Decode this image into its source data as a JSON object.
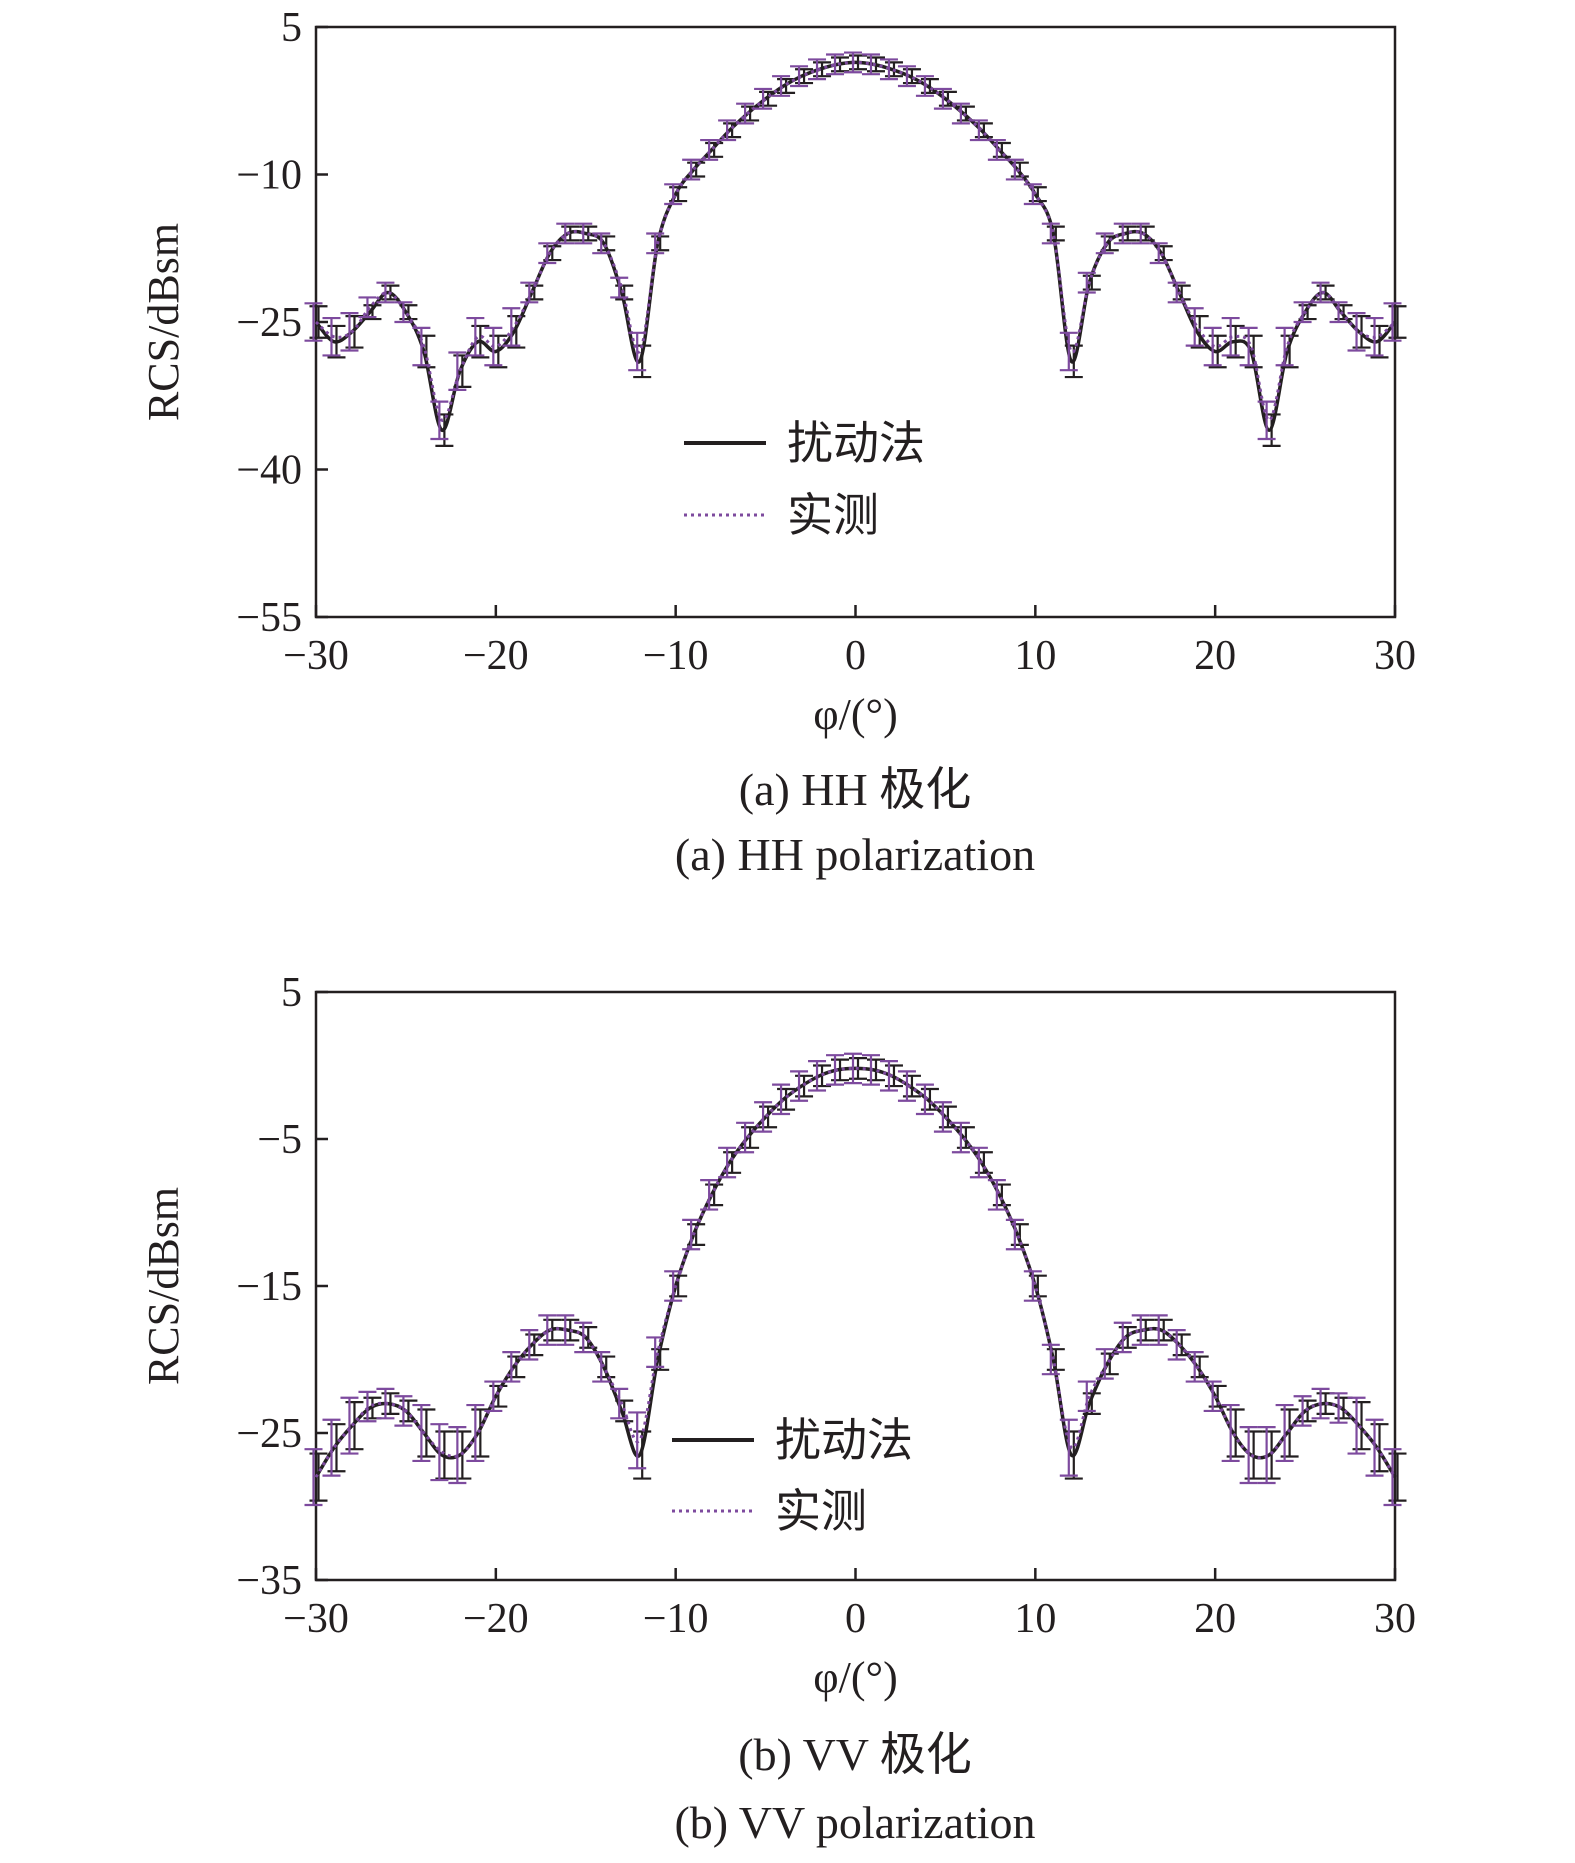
{
  "chart_data": [
    {
      "type": "line",
      "panel": "a",
      "caption_cn": "(a) HH 极化",
      "caption_en": "(a) HH polarization",
      "xlabel": "φ/(°)",
      "ylabel": "RCS/dBsm",
      "xlim": [
        -30,
        30
      ],
      "ylim": [
        -55,
        5
      ],
      "xticks": [
        "−30",
        "−20",
        "−10",
        "0",
        "10",
        "20",
        "30"
      ],
      "yticks": [
        "5",
        "−10",
        "−25",
        "−40",
        "−55"
      ],
      "legend_position": "center",
      "series": [
        {
          "name": "扰动法",
          "color": "#231f20",
          "style": "solid",
          "x": [
            -30,
            -29,
            -28,
            -27,
            -26,
            -25,
            -24,
            -23,
            -22,
            -21,
            -20,
            -19,
            -18,
            -17,
            -16,
            -15,
            -14,
            -13,
            -12,
            -11,
            -10,
            -9,
            -8,
            -7,
            -6,
            -5,
            -4,
            -3,
            -2,
            -1,
            0,
            1,
            2,
            3,
            4,
            5,
            6,
            7,
            8,
            9,
            10,
            11,
            12,
            13,
            14,
            15,
            16,
            17,
            18,
            19,
            20,
            21,
            22,
            23,
            24,
            25,
            26,
            27,
            28,
            29,
            30
          ],
          "y": [
            -25,
            -27,
            -26,
            -24,
            -22,
            -24,
            -28,
            -36,
            -30,
            -27,
            -28,
            -26,
            -22,
            -18,
            -16,
            -16,
            -17,
            -22,
            -29,
            -17,
            -12,
            -9.5,
            -7.5,
            -5.5,
            -3.8,
            -2.3,
            -1,
            0,
            0.7,
            1.2,
            1.4,
            1.2,
            0.7,
            0,
            -1,
            -2.3,
            -3.8,
            -5.5,
            -7.5,
            -9.5,
            -12,
            -16,
            -29,
            -21,
            -17,
            -16,
            -16,
            -18,
            -22,
            -26,
            -28,
            -27,
            -28,
            -36,
            -28,
            -24,
            -22,
            -24,
            -26,
            -27,
            -25
          ]
        },
        {
          "name": "实测",
          "color": "#7d4a9e",
          "style": "dotted",
          "x": [
            -30,
            -29,
            -28,
            -27,
            -26,
            -25,
            -24,
            -23,
            -22,
            -21,
            -20,
            -19,
            -18,
            -17,
            -16,
            -15,
            -14,
            -13,
            -12,
            -11,
            -10,
            -9,
            -8,
            -7,
            -6,
            -5,
            -4,
            -3,
            -2,
            -1,
            0,
            1,
            2,
            3,
            4,
            5,
            6,
            7,
            8,
            9,
            10,
            11,
            12,
            13,
            14,
            15,
            16,
            17,
            18,
            19,
            20,
            21,
            22,
            23,
            24,
            25,
            26,
            27,
            28,
            29,
            30
          ],
          "y": [
            -25,
            -26.5,
            -26,
            -23.5,
            -22,
            -24,
            -27.5,
            -35,
            -30,
            -26.5,
            -27.5,
            -25.5,
            -22,
            -18,
            -16,
            -16,
            -17,
            -21.5,
            -28,
            -17,
            -12,
            -9.5,
            -7.5,
            -5.5,
            -3.8,
            -2.3,
            -1,
            0,
            0.7,
            1.2,
            1.4,
            1.2,
            0.7,
            0,
            -1,
            -2.3,
            -3.8,
            -5.5,
            -7.5,
            -9.5,
            -12,
            -16,
            -28,
            -21,
            -17,
            -16,
            -16,
            -18,
            -22,
            -25.5,
            -27.5,
            -26.5,
            -27.5,
            -35,
            -27.5,
            -24,
            -22,
            -24,
            -26,
            -26.5,
            -25
          ]
        }
      ]
    },
    {
      "type": "line",
      "panel": "b",
      "caption_cn": "(b) VV 极化",
      "caption_en": "(b) VV polarization",
      "xlabel": "φ/(°)",
      "ylabel": "RCS/dBsm",
      "xlim": [
        -30,
        30
      ],
      "ylim": [
        -35,
        5
      ],
      "xticks": [
        "−30",
        "−20",
        "−10",
        "0",
        "10",
        "20",
        "30"
      ],
      "yticks": [
        "5",
        "−5",
        "−15",
        "−25",
        "−35"
      ],
      "legend_position": "bottom-center",
      "series": [
        {
          "name": "扰动法",
          "color": "#231f20",
          "style": "solid",
          "x": [
            -30,
            -29,
            -28,
            -27,
            -26,
            -25,
            -24,
            -23,
            -22,
            -21,
            -20,
            -19,
            -18,
            -17,
            -16,
            -15,
            -14,
            -13,
            -12,
            -11,
            -10,
            -9,
            -8,
            -7,
            -6,
            -5,
            -4,
            -3,
            -2,
            -1,
            0,
            1,
            2,
            3,
            4,
            5,
            6,
            7,
            8,
            9,
            10,
            11,
            12,
            13,
            14,
            15,
            16,
            17,
            18,
            19,
            20,
            21,
            22,
            23,
            24,
            25,
            26,
            27,
            28,
            29,
            30
          ],
          "y": [
            -28,
            -26,
            -24.5,
            -23.3,
            -23,
            -23.5,
            -25,
            -26.5,
            -26.5,
            -25,
            -22.5,
            -20.5,
            -19,
            -18,
            -18,
            -18.5,
            -20.5,
            -23.5,
            -26.5,
            -20,
            -15,
            -11.5,
            -8.8,
            -6.6,
            -4.9,
            -3.5,
            -2.3,
            -1.4,
            -0.7,
            -0.3,
            -0.2,
            -0.3,
            -0.7,
            -1.4,
            -2.3,
            -3.5,
            -4.9,
            -6.6,
            -8.8,
            -11.5,
            -15,
            -20,
            -26.5,
            -23,
            -20.3,
            -18.5,
            -18,
            -18,
            -19,
            -20.5,
            -22.5,
            -25,
            -26.5,
            -26.5,
            -25,
            -23.5,
            -23,
            -23.3,
            -24.5,
            -26,
            -28
          ]
        },
        {
          "name": "实测",
          "color": "#7d4a9e",
          "style": "dotted",
          "x": [
            -30,
            -29,
            -28,
            -27,
            -26,
            -25,
            -24,
            -23,
            -22,
            -21,
            -20,
            -19,
            -18,
            -17,
            -16,
            -15,
            -14,
            -13,
            -12,
            -11,
            -10,
            -9,
            -8,
            -7,
            -6,
            -5,
            -4,
            -3,
            -2,
            -1,
            0,
            1,
            2,
            3,
            4,
            5,
            6,
            7,
            8,
            9,
            10,
            11,
            12,
            13,
            14,
            15,
            16,
            17,
            18,
            19,
            20,
            21,
            22,
            23,
            24,
            25,
            26,
            27,
            28,
            29,
            30
          ],
          "y": [
            -28,
            -26,
            -24.5,
            -23.2,
            -23,
            -23.5,
            -25,
            -26.3,
            -26.5,
            -25,
            -22.5,
            -20.5,
            -19,
            -18,
            -18,
            -18.5,
            -20.5,
            -23,
            -25.5,
            -19.5,
            -15,
            -11.5,
            -8.8,
            -6.6,
            -4.9,
            -3.5,
            -2.3,
            -1.4,
            -0.7,
            -0.3,
            -0.2,
            -0.3,
            -0.7,
            -1.4,
            -2.3,
            -3.5,
            -4.9,
            -6.6,
            -8.8,
            -11.5,
            -15,
            -20,
            -26,
            -22.5,
            -20.3,
            -18.5,
            -18,
            -18,
            -19,
            -20.5,
            -22.5,
            -25,
            -26.5,
            -26.5,
            -25,
            -23.5,
            -23,
            -23.3,
            -24.5,
            -26,
            -28
          ]
        }
      ]
    }
  ]
}
